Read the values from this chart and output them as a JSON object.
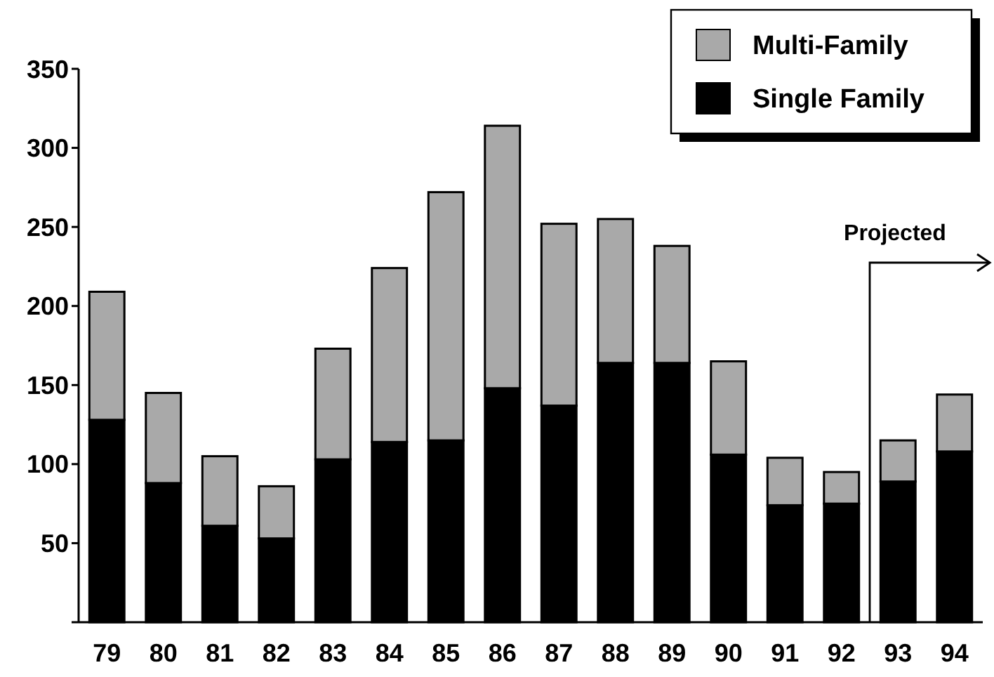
{
  "chart_data": {
    "type": "bar",
    "stacked": true,
    "categories": [
      "79",
      "80",
      "81",
      "82",
      "83",
      "84",
      "85",
      "86",
      "87",
      "88",
      "89",
      "90",
      "91",
      "92",
      "93",
      "94"
    ],
    "series": [
      {
        "name": "Single Family",
        "color": "#000000",
        "values": [
          128,
          88,
          61,
          53,
          103,
          114,
          115,
          148,
          137,
          164,
          164,
          106,
          74,
          75,
          89,
          108
        ]
      },
      {
        "name": "Multi-Family",
        "color": "#a9a9a9",
        "values": [
          81,
          57,
          44,
          33,
          70,
          110,
          157,
          166,
          115,
          91,
          74,
          59,
          30,
          20,
          26,
          36
        ]
      }
    ],
    "ylim": [
      0,
      350
    ],
    "yticks": [
      {
        "value": 0,
        "label": null
      },
      50,
      100,
      150,
      200,
      250,
      300,
      350
    ],
    "legend": "top right",
    "grid": false,
    "ref_lines": [
      {
        "axis": "x",
        "value": "93",
        "label": "Projected",
        "color": "#000000"
      }
    ]
  }
}
